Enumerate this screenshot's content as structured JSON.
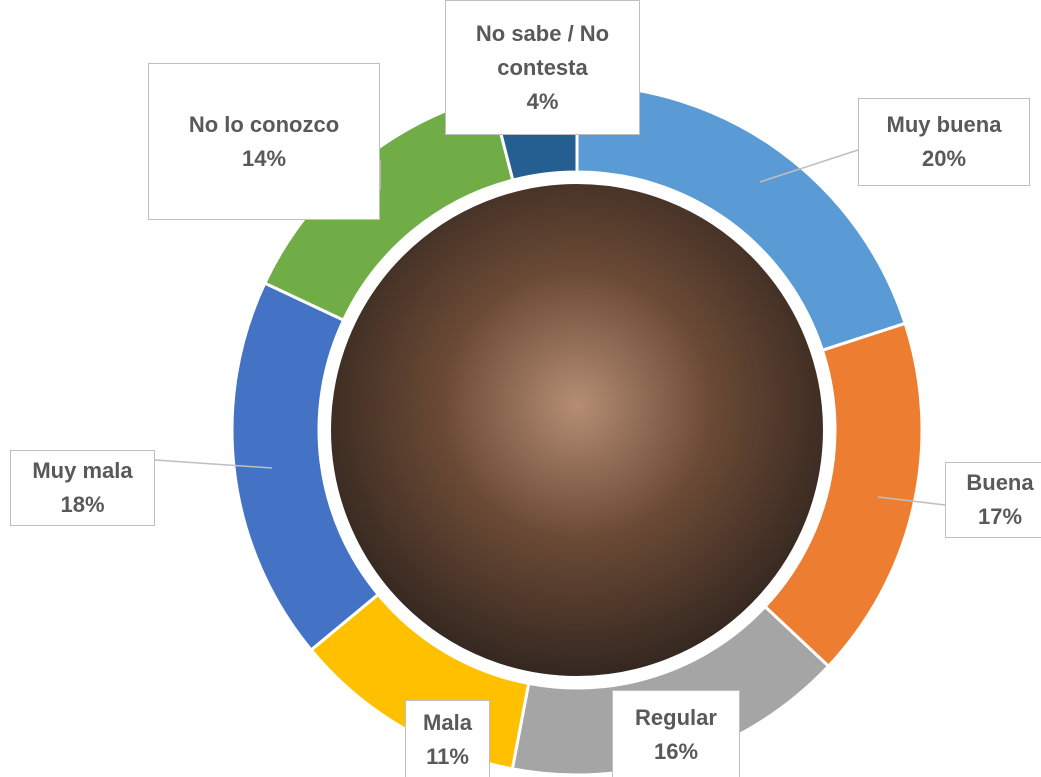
{
  "chart_data": {
    "type": "donut",
    "categories": [
      "Muy buena",
      "Buena",
      "Regular",
      "Mala",
      "Muy mala",
      "No lo conozco",
      "No sabe / No contesta"
    ],
    "values": [
      20,
      17,
      16,
      11,
      18,
      14,
      4
    ],
    "value_labels": [
      "20%",
      "17%",
      "16%",
      "11%",
      "18%",
      "14%",
      "4%"
    ],
    "colors": [
      "#5b9bd5",
      "#ed7d31",
      "#a5a5a5",
      "#ffc000",
      "#4472c4",
      "#70ad47",
      "#255e91"
    ]
  }
}
